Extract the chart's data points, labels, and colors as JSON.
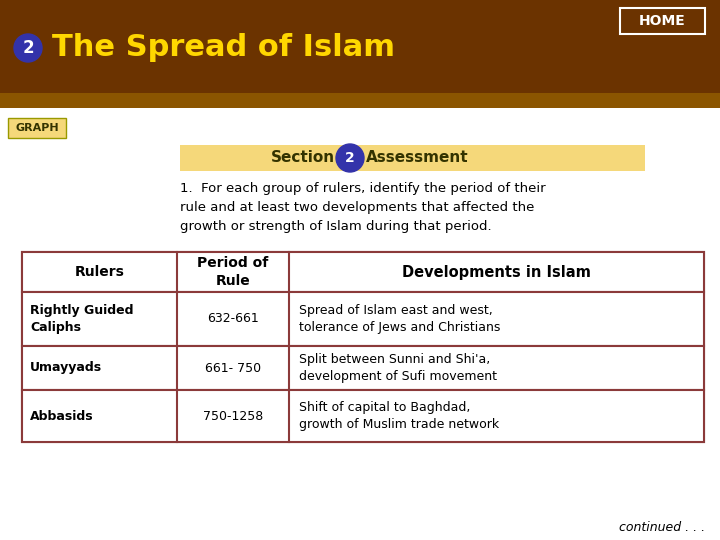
{
  "title": "The Spread of Islam",
  "section_num": "2",
  "header_bg": "#6B3300",
  "header_text_color": "#FFD700",
  "page_bg": "#FFFFFF",
  "home_label": "HOME",
  "graph_label": "GRAPH",
  "section_label": "Section",
  "assessment_label": "Assessment",
  "section_bar_color": "#F5D87A",
  "question_text": "1.  For each group of rulers, identify the period of their\nrule and at least two developments that affected the\ngrowth or strength of Islam during that period.",
  "table_border_color": "#8B3A3A",
  "table_header": [
    "Rulers",
    "Period of\nRule",
    "Developments in Islam"
  ],
  "table_rows": [
    [
      "Rightly Guided\nCaliphs",
      "632-661",
      "Spread of Islam east and west,\ntolerance of Jews and Christians"
    ],
    [
      "Umayyads",
      "661- 750",
      "Split between Sunni and Shi'a,\ndevelopment of Sufi movement"
    ],
    [
      "Abbasids",
      "750-1258",
      "Shift of capital to Baghdad,\ngrowth of Muslim trade network"
    ]
  ],
  "continued_text": "continued . . .",
  "circle_color": "#3333AA",
  "num_circle_text": "2",
  "title_num_circle_color": "#3333AA",
  "graph_box_color": "#F5D87A",
  "graph_box_border": "#999900",
  "lighter_brown_strip": "#8B5500"
}
